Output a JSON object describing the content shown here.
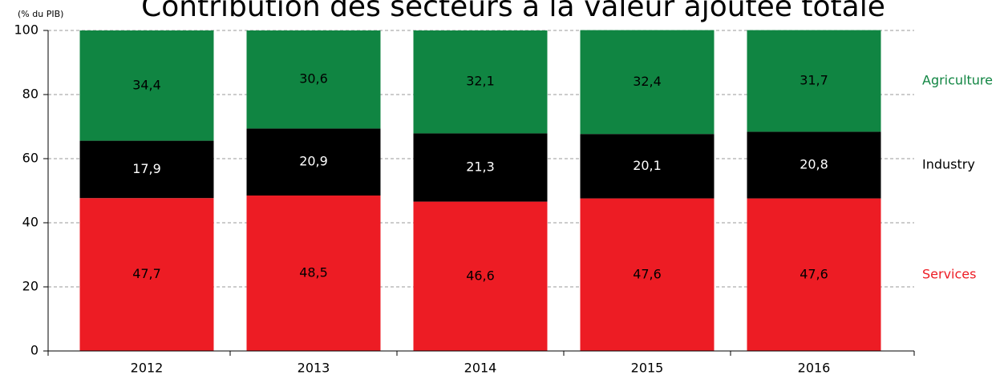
{
  "chart_data": {
    "type": "stacked_bar",
    "title": "Contribution des secteurs à la valeur ajoutée totale",
    "y_axis_label": "(% du PIB)",
    "categories": [
      "2012",
      "2013",
      "2014",
      "2015",
      "2016"
    ],
    "series": [
      {
        "name": "Services",
        "color": "#ed1c24",
        "values": [
          47.7,
          48.5,
          46.6,
          47.6,
          47.6
        ],
        "value_labels": [
          "47,7",
          "48,5",
          "46,6",
          "47,6",
          "47,6"
        ]
      },
      {
        "name": "Industry",
        "color": "#000000",
        "values": [
          17.9,
          20.9,
          21.3,
          20.1,
          20.8
        ],
        "value_labels": [
          "17,9",
          "20,9",
          "21,3",
          "20,1",
          "20,8"
        ]
      },
      {
        "name": "Agriculture",
        "color": "#108542",
        "values": [
          34.4,
          30.6,
          32.1,
          32.4,
          31.7
        ],
        "value_labels": [
          "34,4",
          "30,6",
          "32,1",
          "32,4",
          "31,7"
        ]
      }
    ],
    "ylim": [
      0,
      100
    ],
    "yticks": [
      0,
      20,
      40,
      60,
      80,
      100
    ],
    "grid": true
  }
}
